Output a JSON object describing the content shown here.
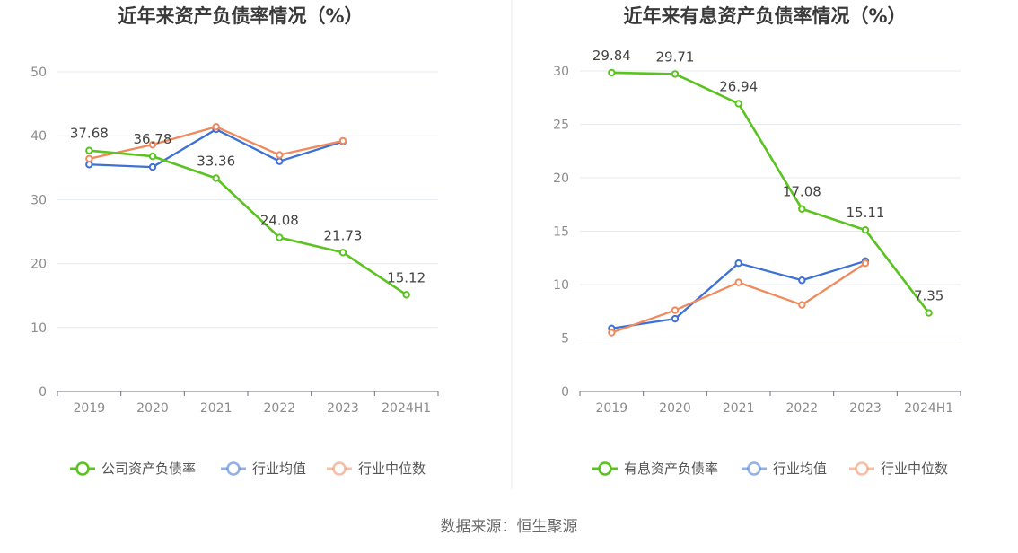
{
  "source_label": "数据来源：恒生聚源",
  "chart_data": [
    {
      "type": "line",
      "title": "近年来资产负债率情况（%）",
      "xlabel": "",
      "ylabel": "",
      "categories": [
        "2019",
        "2020",
        "2021",
        "2022",
        "2023",
        "2024H1"
      ],
      "ylim": [
        0,
        50
      ],
      "yticks": [
        0,
        10,
        20,
        30,
        40,
        50
      ],
      "grid": true,
      "legend_position": "bottom",
      "series": [
        {
          "name": "公司资产负债率",
          "color": "#5ac31f",
          "values": [
            37.68,
            36.78,
            33.36,
            24.08,
            21.73,
            15.12
          ],
          "labels": [
            "37.68",
            "36.78",
            "33.36",
            "24.08",
            "21.73",
            "15.12"
          ]
        },
        {
          "name": "行业均值",
          "color": "#3d71d6",
          "values": [
            35.5,
            35.1,
            41.0,
            36.0,
            39.1,
            null
          ]
        },
        {
          "name": "行业中位数",
          "color": "#f08a5d",
          "values": [
            36.4,
            38.6,
            41.4,
            37.0,
            39.2,
            null
          ]
        }
      ]
    },
    {
      "type": "line",
      "title": "近年来有息资产负债率情况（%）",
      "xlabel": "",
      "ylabel": "",
      "categories": [
        "2019",
        "2020",
        "2021",
        "2022",
        "2023",
        "2024H1"
      ],
      "ylim": [
        0,
        30
      ],
      "yticks": [
        0,
        5,
        10,
        15,
        20,
        25,
        30
      ],
      "grid": true,
      "legend_position": "bottom",
      "series": [
        {
          "name": "有息资产负债率",
          "color": "#5ac31f",
          "values": [
            29.84,
            29.71,
            26.94,
            17.08,
            15.11,
            7.35
          ],
          "labels": [
            "29.84",
            "29.71",
            "26.94",
            "17.08",
            "15.11",
            "7.35"
          ]
        },
        {
          "name": "行业均值",
          "color": "#3d71d6",
          "values": [
            5.9,
            6.8,
            12.0,
            10.4,
            12.2,
            null
          ]
        },
        {
          "name": "行业中位数",
          "color": "#f08a5d",
          "values": [
            5.5,
            7.6,
            10.2,
            8.1,
            12.0,
            null
          ]
        }
      ]
    }
  ]
}
